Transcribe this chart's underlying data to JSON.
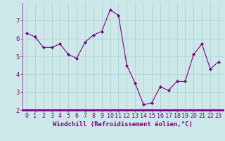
{
  "x": [
    0,
    1,
    2,
    3,
    4,
    5,
    6,
    7,
    8,
    9,
    10,
    11,
    12,
    13,
    14,
    15,
    16,
    17,
    18,
    19,
    20,
    21,
    22,
    23
  ],
  "y": [
    6.3,
    6.1,
    5.5,
    5.5,
    5.7,
    5.1,
    4.9,
    5.8,
    6.2,
    6.4,
    7.6,
    7.3,
    4.5,
    3.5,
    2.3,
    2.4,
    3.3,
    3.1,
    3.6,
    3.6,
    5.1,
    5.7,
    4.3,
    4.7
  ],
  "line_color": "#800080",
  "marker": "D",
  "marker_size": 2.0,
  "bg_color": "#cce8e8",
  "grid_color": "#aacfcf",
  "xlabel": "Windchill (Refroidissement éolien,°C)",
  "xlabel_color": "#800080",
  "xlabel_fontsize": 6.5,
  "tick_color": "#800080",
  "tick_fontsize": 6,
  "ylim": [
    2,
    8
  ],
  "xlim": [
    -0.5,
    23.5
  ],
  "yticks": [
    2,
    3,
    4,
    5,
    6,
    7
  ],
  "xticks": [
    0,
    1,
    2,
    3,
    4,
    5,
    6,
    7,
    8,
    9,
    10,
    11,
    12,
    13,
    14,
    15,
    16,
    17,
    18,
    19,
    20,
    21,
    22,
    23
  ],
  "spine_color": "#800080",
  "bottom_bar_color": "#800080"
}
